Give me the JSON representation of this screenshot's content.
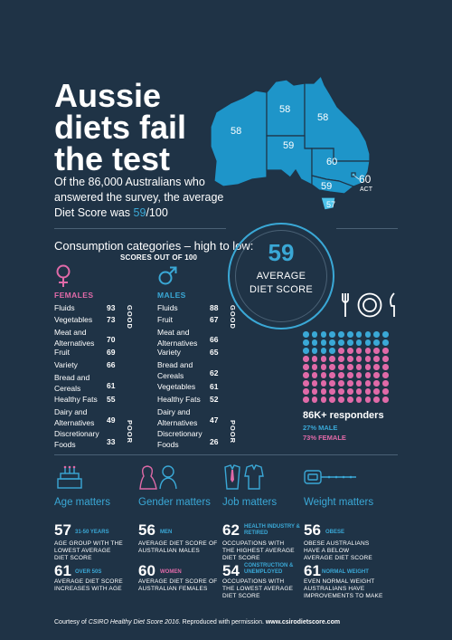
{
  "header": {
    "title_lines": [
      "Aussie",
      "diets fail",
      "the test"
    ],
    "intro_pre": "Of the 86,000 Australians who answered the survey, the average Diet Score was ",
    "intro_highlight": "59",
    "intro_post": "/100"
  },
  "map": {
    "scores": {
      "wa": "58",
      "nt": "58",
      "qld": "58",
      "sa": "59",
      "nsw": "60",
      "act": "60",
      "act_label": "ACT",
      "vic": "59",
      "tas": "57"
    },
    "colors": {
      "land": "#1e95c9",
      "border": "#1f3346",
      "highlight": "#4dc3ea"
    }
  },
  "consumption": {
    "title": "Consumption categories – high to low:",
    "scores_out_of": "SCORES OUT OF 100",
    "average": {
      "number": "59",
      "label": "AVERAGE DIET SCORE"
    },
    "good_label": "GOOD",
    "poor_label": "POOR",
    "females": {
      "heading": "FEMALES",
      "items": [
        {
          "label": "Fluids",
          "value": "93"
        },
        {
          "label": "Vegetables",
          "value": "73"
        },
        {
          "label": "Meat and Alternatives",
          "value": "70"
        },
        {
          "label": "Fruit",
          "value": "69"
        },
        {
          "label": "Variety",
          "value": "66"
        },
        {
          "label": "Bread and Cereals",
          "value": "61"
        },
        {
          "label": "Healthy Fats",
          "value": "55"
        },
        {
          "label": "Dairy and Alternatives",
          "value": "49"
        },
        {
          "label": "Discretionary Foods",
          "value": "33"
        }
      ]
    },
    "males": {
      "heading": "MALES",
      "items": [
        {
          "label": "Fluids",
          "value": "88"
        },
        {
          "label": "Fruit",
          "value": "67"
        },
        {
          "label": "Meat and Alternatives",
          "value": "66"
        },
        {
          "label": "Variety",
          "value": "65"
        },
        {
          "label": "Bread and Cereals",
          "value": "62"
        },
        {
          "label": "Vegetables",
          "value": "61"
        },
        {
          "label": "Healthy Fats",
          "value": "52"
        },
        {
          "label": "Dairy and Alternatives",
          "value": "47"
        },
        {
          "label": "Discretionary Foods",
          "value": "26"
        }
      ]
    }
  },
  "responders": {
    "headline": "86K+ responders",
    "male": "27% MALE",
    "female": "73% FEMALE",
    "male_fraction": 0.27,
    "female_fraction": 0.73,
    "colors": {
      "male": "#3aa8d6",
      "female": "#e06aa8"
    }
  },
  "matters": {
    "age": {
      "title": "Age matters",
      "s1_num": "57",
      "s1_tag": "31-50 YEARS",
      "s1_desc": "AGE GROUP WITH THE LOWEST AVERAGE DIET SCORE",
      "s2_num": "61",
      "s2_tag": "OVER 50S",
      "s2_desc": "AVERAGE DIET SCORE INCREASES WITH AGE"
    },
    "gender": {
      "title": "Gender matters",
      "s1_num": "56",
      "s1_tag": "MEN",
      "s1_desc": "AVERAGE DIET SCORE OF AUSTRALIAN MALES",
      "s2_num": "60",
      "s2_tag": "WOMEN",
      "s2_desc": "AVERAGE DIET SCORE OF AUSTRALIAN FEMALES"
    },
    "job": {
      "title": "Job matters",
      "s1_num": "62",
      "s1_tag": "HEALTH INDUSTRY & RETIRED",
      "s1_desc": "OCCUPATIONS WITH THE HIGHEST AVERAGE DIET SCORE",
      "s2_num": "54",
      "s2_tag": "CONSTRUCTION & UNEMPLOYED",
      "s2_desc": "OCCUPATIONS WITH THE LOWEST AVERAGE DIET SCORE"
    },
    "weight": {
      "title": "Weight matters",
      "s1_num": "56",
      "s1_tag": "OBESE",
      "s1_desc": "OBESE AUSTRALIANS HAVE A BELOW AVERAGE DIET SCORE",
      "s2_num": "61",
      "s2_tag": "NORMAL WEIGHT",
      "s2_desc": "EVEN NORMAL WEIGHT AUSTRALIANS HAVE IMPROVEMENTS TO MAKE"
    }
  },
  "footer": {
    "pre": "Courtesy of ",
    "source": "CSIRO Healthy Diet Score 2016",
    "mid": ". Reproduced with permission. ",
    "url": "www.csirodietscore.com"
  },
  "colors": {
    "background": "#1f3346",
    "blue": "#3aa8d6",
    "pink": "#e06aa8"
  }
}
